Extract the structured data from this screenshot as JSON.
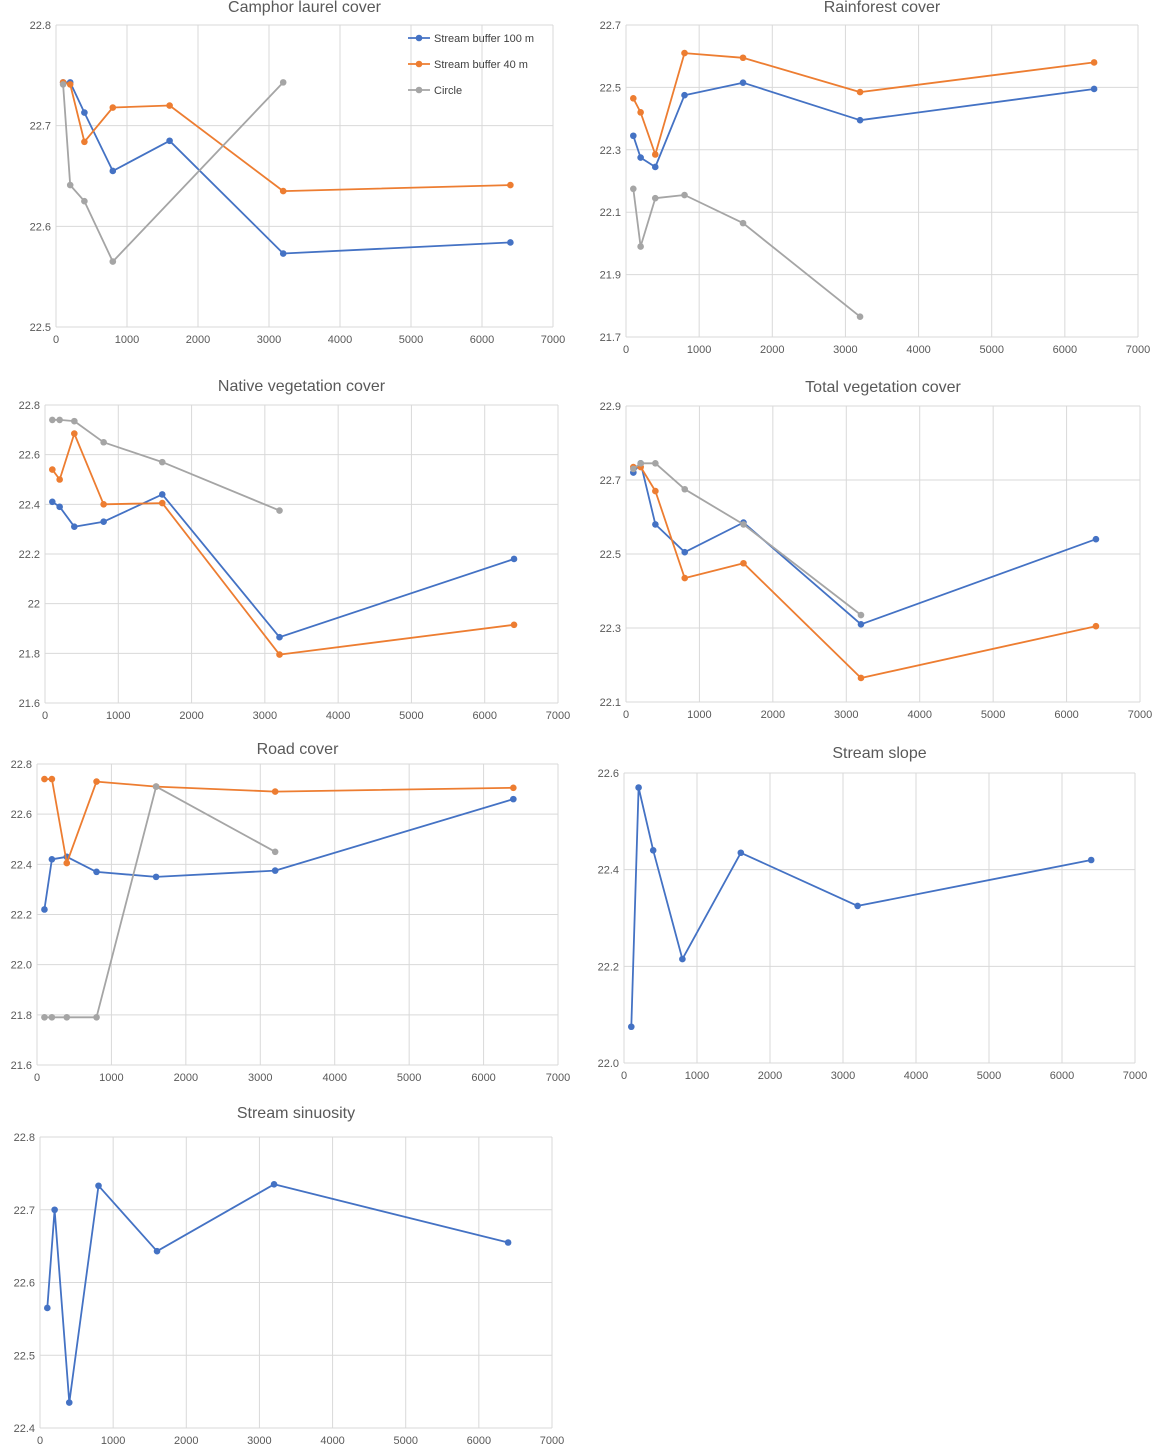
{
  "colors": {
    "s100": "#4472C4",
    "s40": "#ED7D31",
    "circle": "#A5A5A5",
    "grid": "#D9D9D9",
    "text": "#595959"
  },
  "legend": {
    "s100": "Stream buffer 100 m",
    "s40": "Stream buffer 40 m",
    "circle": "Circle"
  },
  "chart_data": [
    {
      "type": "line",
      "title": "Camphor laurel cover",
      "xlim": [
        0,
        7000
      ],
      "ylim": [
        22.5,
        22.8
      ],
      "x_ticks": [
        0,
        1000,
        2000,
        3000,
        4000,
        5000,
        6000,
        7000
      ],
      "y_ticks": [
        "22.5",
        "22.6",
        "22.7",
        "22.8"
      ],
      "show_legend": true,
      "series": [
        {
          "key": "s100",
          "name": "Stream buffer 100 m",
          "x": [
            100,
            200,
            400,
            800,
            1600,
            3200,
            6400
          ],
          "y": [
            22.743,
            22.743,
            22.713,
            22.655,
            22.685,
            22.573,
            22.584
          ]
        },
        {
          "key": "s40",
          "name": "Stream buffer 40 m",
          "x": [
            100,
            200,
            400,
            800,
            1600,
            3200,
            6400
          ],
          "y": [
            22.743,
            22.741,
            22.684,
            22.718,
            22.72,
            22.635,
            22.641
          ]
        },
        {
          "key": "circle",
          "name": "Circle",
          "x": [
            100,
            200,
            400,
            800,
            3200
          ],
          "y": [
            22.741,
            22.641,
            22.625,
            22.565,
            22.743
          ]
        }
      ]
    },
    {
      "type": "line",
      "title": "Rainforest cover",
      "xlim": [
        0,
        7000
      ],
      "ylim": [
        21.7,
        22.7
      ],
      "x_ticks": [
        0,
        1000,
        2000,
        3000,
        4000,
        5000,
        6000,
        7000
      ],
      "y_ticks": [
        "21.7",
        "21.9",
        "22.1",
        "22.3",
        "22.5",
        "22.7"
      ],
      "show_legend": false,
      "series": [
        {
          "key": "s100",
          "x": [
            100,
            200,
            400,
            800,
            1600,
            3200,
            6400
          ],
          "y": [
            22.345,
            22.275,
            22.245,
            22.475,
            22.515,
            22.395,
            22.495
          ]
        },
        {
          "key": "s40",
          "x": [
            100,
            200,
            400,
            800,
            1600,
            3200,
            6400
          ],
          "y": [
            22.465,
            22.42,
            22.285,
            22.61,
            22.595,
            22.485,
            22.58
          ]
        },
        {
          "key": "circle",
          "x": [
            100,
            200,
            400,
            800,
            1600,
            3200
          ],
          "y": [
            22.175,
            21.99,
            22.145,
            22.155,
            22.065,
            21.765
          ]
        }
      ]
    },
    {
      "type": "line",
      "title": "Native vegetation cover",
      "xlim": [
        0,
        7000
      ],
      "ylim": [
        21.6,
        22.8
      ],
      "x_ticks": [
        0,
        1000,
        2000,
        3000,
        4000,
        5000,
        6000,
        7000
      ],
      "y_ticks": [
        "21.6",
        "21.8",
        "22",
        "22.2",
        "22.4",
        "22.6",
        "22.8"
      ],
      "show_legend": false,
      "series": [
        {
          "key": "s100",
          "x": [
            100,
            200,
            400,
            800,
            1600,
            3200,
            6400
          ],
          "y": [
            22.41,
            22.39,
            22.31,
            22.33,
            22.44,
            21.865,
            22.18
          ]
        },
        {
          "key": "s40",
          "x": [
            100,
            200,
            400,
            800,
            1600,
            3200,
            6400
          ],
          "y": [
            22.54,
            22.5,
            22.685,
            22.4,
            22.405,
            21.795,
            21.915
          ]
        },
        {
          "key": "circle",
          "x": [
            100,
            200,
            400,
            800,
            1600,
            3200
          ],
          "y": [
            22.74,
            22.74,
            22.735,
            22.65,
            22.57,
            22.375
          ]
        }
      ]
    },
    {
      "type": "line",
      "title": "Total vegetation cover",
      "xlim": [
        0,
        7000
      ],
      "ylim": [
        22.1,
        22.9
      ],
      "x_ticks": [
        0,
        1000,
        2000,
        3000,
        4000,
        5000,
        6000,
        7000
      ],
      "y_ticks": [
        "22.1",
        "22.3",
        "22.5",
        "22.7",
        "22.9"
      ],
      "show_legend": false,
      "series": [
        {
          "key": "s100",
          "x": [
            100,
            200,
            400,
            800,
            1600,
            3200,
            6400
          ],
          "y": [
            22.72,
            22.745,
            22.58,
            22.505,
            22.585,
            22.31,
            22.54
          ]
        },
        {
          "key": "s40",
          "x": [
            100,
            200,
            400,
            800,
            1600,
            3200,
            6400
          ],
          "y": [
            22.735,
            22.735,
            22.67,
            22.435,
            22.475,
            22.165,
            22.305
          ]
        },
        {
          "key": "circle",
          "x": [
            100,
            200,
            400,
            800,
            1600,
            3200
          ],
          "y": [
            22.73,
            22.745,
            22.745,
            22.675,
            22.58,
            22.335
          ]
        }
      ]
    },
    {
      "type": "line",
      "title": "Road cover",
      "xlim": [
        0,
        7000
      ],
      "ylim": [
        21.6,
        22.8
      ],
      "x_ticks": [
        0,
        1000,
        2000,
        3000,
        4000,
        5000,
        6000,
        7000
      ],
      "y_ticks": [
        "21.6",
        "21.8",
        "22.0",
        "22.2",
        "22.4",
        "22.6",
        "22.8"
      ],
      "show_legend": false,
      "series": [
        {
          "key": "s100",
          "x": [
            100,
            200,
            400,
            800,
            1600,
            3200,
            6400
          ],
          "y": [
            22.22,
            22.42,
            22.43,
            22.37,
            22.35,
            22.375,
            22.66
          ]
        },
        {
          "key": "s40",
          "x": [
            100,
            200,
            400,
            800,
            1600,
            3200,
            6400
          ],
          "y": [
            22.74,
            22.74,
            22.405,
            22.73,
            22.71,
            22.69,
            22.705
          ]
        },
        {
          "key": "circle",
          "x": [
            100,
            200,
            400,
            800,
            1600,
            3200
          ],
          "y": [
            21.79,
            21.79,
            21.79,
            21.79,
            22.71,
            22.45
          ]
        }
      ]
    },
    {
      "type": "line",
      "title": "Stream slope",
      "xlim": [
        0,
        7000
      ],
      "ylim": [
        22.0,
        22.6
      ],
      "x_ticks": [
        0,
        1000,
        2000,
        3000,
        4000,
        5000,
        6000,
        7000
      ],
      "y_ticks": [
        "22.0",
        "22.2",
        "22.4",
        "22.6"
      ],
      "show_legend": false,
      "series": [
        {
          "key": "s100",
          "x": [
            100,
            200,
            400,
            800,
            1600,
            3200,
            6400
          ],
          "y": [
            22.075,
            22.57,
            22.44,
            22.215,
            22.435,
            22.325,
            22.42
          ]
        }
      ]
    },
    {
      "type": "line",
      "title": "Stream sinuosity",
      "xlim": [
        0,
        7000
      ],
      "ylim": [
        22.4,
        22.8
      ],
      "x_ticks": [
        0,
        1000,
        2000,
        3000,
        4000,
        5000,
        6000,
        7000
      ],
      "y_ticks": [
        "22.4",
        "22.5",
        "22.6",
        "22.7",
        "22.8"
      ],
      "show_legend": false,
      "series": [
        {
          "key": "s100",
          "x": [
            100,
            200,
            400,
            800,
            1600,
            3200,
            6400
          ],
          "y": [
            22.565,
            22.7,
            22.435,
            22.733,
            22.643,
            22.735,
            22.655
          ]
        }
      ]
    }
  ]
}
